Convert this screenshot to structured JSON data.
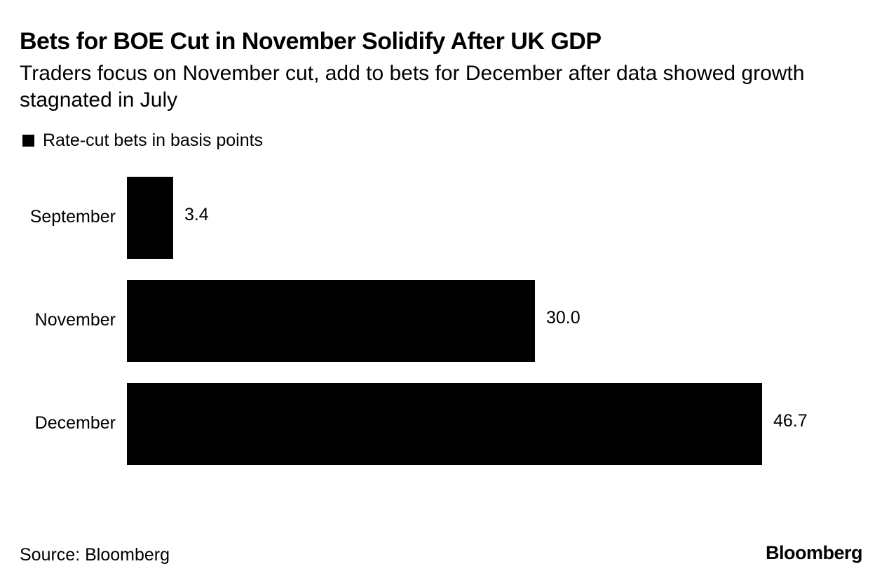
{
  "header": {
    "title": "Bets for BOE Cut in November Solidify After UK GDP",
    "subtitle": "Traders focus on November cut, add to bets for December after data showed growth stagnated in July"
  },
  "legend": {
    "label": "Rate-cut bets in basis points",
    "color": "#000000"
  },
  "footer": {
    "source": "Source: Bloomberg",
    "logo": "Bloomberg"
  },
  "chart_data": {
    "type": "bar",
    "orientation": "horizontal",
    "title": "Bets for BOE Cut in November Solidify After UK GDP",
    "subtitle": "Traders focus on November cut, add to bets for December after data showed growth stagnated in July",
    "categories": [
      "September",
      "November",
      "December"
    ],
    "series": [
      {
        "name": "Rate-cut bets in basis points",
        "color": "#000000",
        "values": [
          3.4,
          30.0,
          46.7
        ],
        "labels": [
          "3.4",
          "30.0",
          "46.7"
        ]
      }
    ],
    "xlim": [
      0,
      46.7
    ],
    "xlabel": "",
    "ylabel": "",
    "grid": false,
    "legend_position": "top-left",
    "source": "Source: Bloomberg"
  }
}
